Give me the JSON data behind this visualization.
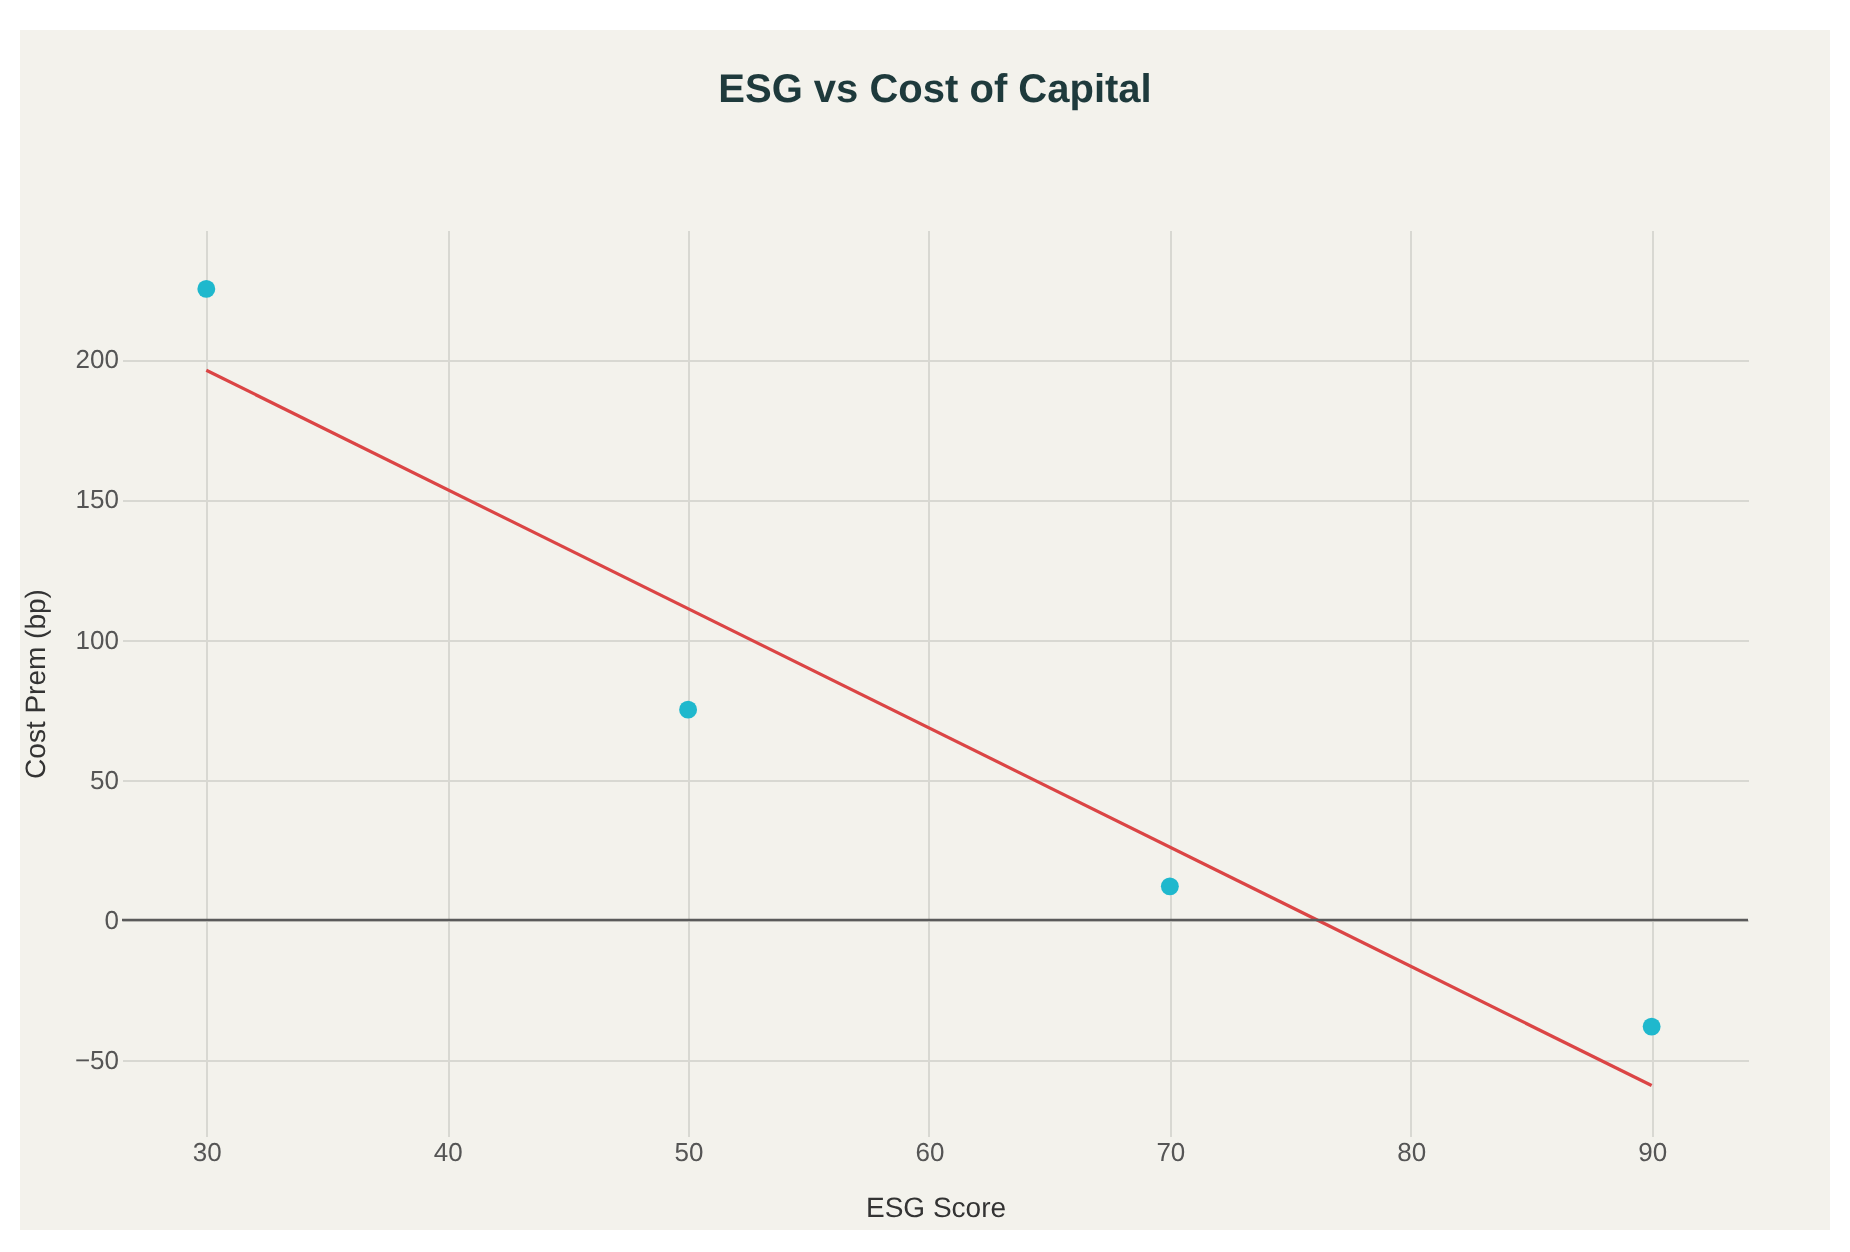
{
  "chart_data": {
    "type": "scatter",
    "title": "ESG vs Cost of Capital",
    "xlabel": "ESG Score",
    "ylabel": "Cost Prem (bp)",
    "x": [
      30,
      50,
      70,
      90
    ],
    "series": [
      {
        "color": "#1fb8cd",
        "values": [
          225,
          75,
          12,
          -38
        ],
        "marker": "circle"
      },
      {
        "type": "line",
        "color": "#db4545",
        "x": [
          30,
          90
        ],
        "values": [
          196,
          -59
        ],
        "marker": "none",
        "line_style": "solid"
      }
    ],
    "xlim": [
      26.5,
      94
    ],
    "xticks": [
      30,
      40,
      50,
      60,
      70,
      80,
      90
    ],
    "ylim": [
      -77,
      246
    ],
    "yticks": [
      -50,
      0,
      50,
      100,
      150,
      200
    ],
    "ref_lines": [
      {
        "axis": "y",
        "value": 0,
        "color": "#5a5a5a"
      }
    ],
    "grid": true
  }
}
